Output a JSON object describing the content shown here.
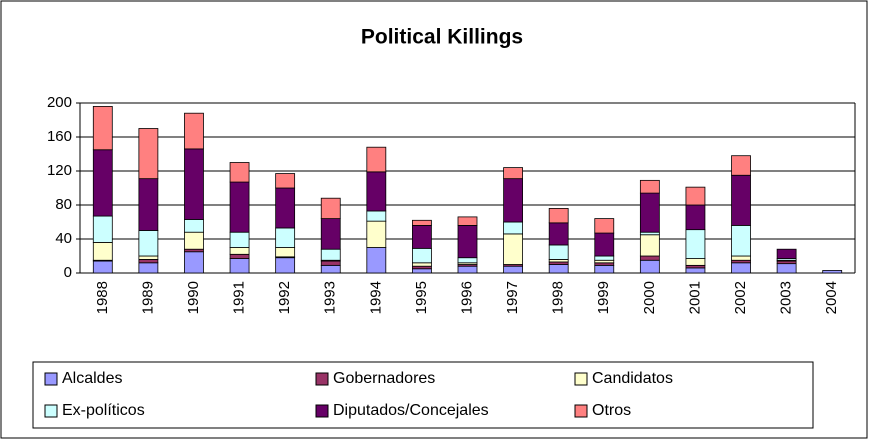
{
  "chart_data": {
    "type": "stacked_bar",
    "title": "Political Killings",
    "categories": [
      "1988",
      "1989",
      "1990",
      "1991",
      "1992",
      "1993",
      "1994",
      "1995",
      "1996",
      "1997",
      "1998",
      "1999",
      "2000",
      "2001",
      "2002",
      "2003",
      "2004"
    ],
    "series": [
      {
        "name": "Alcaldes",
        "color": "#9999ff",
        "values": [
          14,
          12,
          25,
          17,
          18,
          9,
          30,
          5,
          8,
          8,
          10,
          9,
          15,
          6,
          12,
          11,
          3
        ]
      },
      {
        "name": "Gobernadores",
        "color": "#993366",
        "values": [
          1,
          4,
          3,
          5,
          1,
          5,
          0,
          3,
          2,
          2,
          3,
          3,
          5,
          3,
          3,
          3,
          0
        ]
      },
      {
        "name": "Candidatos",
        "color": "#ffffcc",
        "values": [
          21,
          4,
          20,
          8,
          11,
          1,
          31,
          4,
          2,
          36,
          3,
          3,
          25,
          8,
          5,
          1,
          0
        ]
      },
      {
        "name": "Ex-políticos",
        "color": "#ccffff",
        "values": [
          31,
          30,
          15,
          18,
          23,
          13,
          12,
          17,
          6,
          14,
          17,
          5,
          3,
          34,
          36,
          2,
          0
        ]
      },
      {
        "name": "Diputados/Concejales",
        "color": "#660066",
        "values": [
          78,
          61,
          83,
          59,
          47,
          36,
          46,
          27,
          38,
          51,
          26,
          27,
          46,
          29,
          59,
          11,
          0
        ]
      },
      {
        "name": "Otros",
        "color": "#ff8080",
        "values": [
          51,
          59,
          42,
          23,
          17,
          24,
          29,
          6,
          10,
          13,
          17,
          17,
          15,
          21,
          23,
          0,
          0
        ]
      }
    ],
    "ylim": [
      0,
      200
    ],
    "yticks": [
      0,
      40,
      80,
      120,
      160,
      200
    ],
    "grid": true
  }
}
